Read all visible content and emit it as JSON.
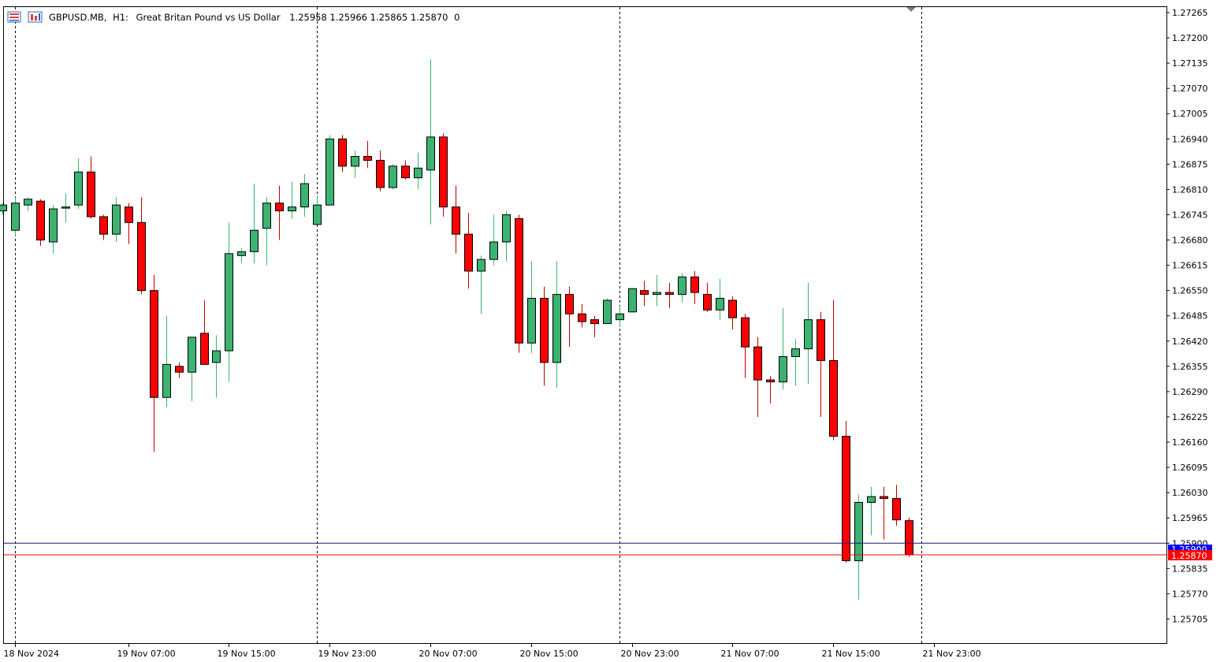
{
  "header": {
    "symbol": "GBPUSD.MB,",
    "timeframe": "H1:",
    "description": "Great Britan Pound vs US Dollar",
    "ohlc": "1.25958 1.25966 1.25865 1.25870",
    "extra": "0"
  },
  "icons": [
    "chart-menu-icon",
    "indicator-list-icon"
  ],
  "colors": {
    "bull": "#3cb371",
    "bear": "#ff0000",
    "wick_bull": "#3cb371",
    "wick_bear": "#c00000",
    "outline": "#000000",
    "bid_line": "#ff0000",
    "ask_line": "#1a1a7a",
    "bid_tag": "#ff0000",
    "ask_tag": "#0000ff"
  },
  "bid_label": "1.25870",
  "ask_label": "1.25900",
  "chart_data": {
    "type": "candlestick",
    "symbol": "GBPUSD.MB",
    "timeframe": "H1",
    "ylim": [
      1.2566,
      1.2729
    ],
    "y_ticks": [
      "1.27265",
      "1.27200",
      "1.27135",
      "1.27070",
      "1.27005",
      "1.26940",
      "1.26875",
      "1.26810",
      "1.26745",
      "1.26680",
      "1.26615",
      "1.26550",
      "1.26485",
      "1.26420",
      "1.26355",
      "1.26290",
      "1.26225",
      "1.26160",
      "1.26095",
      "1.26030",
      "1.25965",
      "1.25900",
      "1.25835",
      "1.25770",
      "1.25705"
    ],
    "x_labels": [
      {
        "label": "18 Nov 2024",
        "index": 1
      },
      {
        "label": "19 Nov 07:00",
        "index": 10
      },
      {
        "label": "19 Nov 15:00",
        "index": 18
      },
      {
        "label": "19 Nov 23:00",
        "index": 26
      },
      {
        "label": "20 Nov 07:00",
        "index": 34
      },
      {
        "label": "20 Nov 15:00",
        "index": 42
      },
      {
        "label": "20 Nov 23:00",
        "index": 50
      },
      {
        "label": "21 Nov 07:00",
        "index": 58
      },
      {
        "label": "21 Nov 15:00",
        "index": 66
      },
      {
        "label": "21 Nov 23:00",
        "index": 74
      }
    ],
    "separators": [
      1,
      25,
      49,
      73
    ],
    "bid": 1.2587,
    "ask": 1.259,
    "candles": [
      [
        1.26755,
        1.26775,
        1.26745,
        1.2677
      ],
      [
        1.26705,
        1.2679,
        1.2669,
        1.26775
      ],
      [
        1.2677,
        1.2679,
        1.26755,
        1.26785
      ],
      [
        1.2678,
        1.26785,
        1.26665,
        1.2668
      ],
      [
        1.26675,
        1.2677,
        1.26645,
        1.2676
      ],
      [
        1.26765,
        1.268,
        1.26725,
        1.26765
      ],
      [
        1.2677,
        1.2689,
        1.2676,
        1.26855
      ],
      [
        1.26855,
        1.26895,
        1.26735,
        1.2674
      ],
      [
        1.2674,
        1.26745,
        1.2668,
        1.26695
      ],
      [
        1.26695,
        1.2679,
        1.26675,
        1.2677
      ],
      [
        1.26765,
        1.26775,
        1.2667,
        1.26725
      ],
      [
        1.26725,
        1.2679,
        1.2654,
        1.2655
      ],
      [
        1.2655,
        1.2659,
        1.26135,
        1.26275
      ],
      [
        1.26275,
        1.26485,
        1.2625,
        1.2636
      ],
      [
        1.26355,
        1.26365,
        1.26325,
        1.2634
      ],
      [
        1.2634,
        1.2643,
        1.26265,
        1.2643
      ],
      [
        1.2644,
        1.26525,
        1.2636,
        1.2636
      ],
      [
        1.26365,
        1.26435,
        1.26275,
        1.26395
      ],
      [
        1.26395,
        1.26725,
        1.26315,
        1.26645
      ],
      [
        1.2664,
        1.2666,
        1.2662,
        1.2665
      ],
      [
        1.2665,
        1.26825,
        1.2662,
        1.26705
      ],
      [
        1.2671,
        1.2679,
        1.26615,
        1.26775
      ],
      [
        1.26775,
        1.2682,
        1.2668,
        1.26755
      ],
      [
        1.26755,
        1.2683,
        1.26735,
        1.26765
      ],
      [
        1.26765,
        1.2685,
        1.2674,
        1.26825
      ],
      [
        1.2672,
        1.26795,
        1.2672,
        1.2677
      ],
      [
        1.2677,
        1.2695,
        1.2677,
        1.2694
      ],
      [
        1.2694,
        1.2695,
        1.26855,
        1.2687
      ],
      [
        1.2687,
        1.2691,
        1.2684,
        1.26895
      ],
      [
        1.26895,
        1.26935,
        1.26865,
        1.26885
      ],
      [
        1.26885,
        1.2691,
        1.26805,
        1.26815
      ],
      [
        1.26815,
        1.26875,
        1.2681,
        1.2687
      ],
      [
        1.2687,
        1.26885,
        1.26835,
        1.2684
      ],
      [
        1.2684,
        1.26905,
        1.2681,
        1.26865
      ],
      [
        1.2686,
        1.27145,
        1.2672,
        1.26945
      ],
      [
        1.26945,
        1.26955,
        1.2674,
        1.26765
      ],
      [
        1.26765,
        1.2682,
        1.26645,
        1.26695
      ],
      [
        1.26695,
        1.2675,
        1.26555,
        1.266
      ],
      [
        1.266,
        1.2664,
        1.2649,
        1.2663
      ],
      [
        1.2663,
        1.26745,
        1.26615,
        1.26675
      ],
      [
        1.26675,
        1.26755,
        1.26625,
        1.26745
      ],
      [
        1.26735,
        1.26745,
        1.2639,
        1.26415
      ],
      [
        1.26415,
        1.26625,
        1.2639,
        1.2653
      ],
      [
        1.2653,
        1.2656,
        1.26305,
        1.26365
      ],
      [
        1.26365,
        1.26625,
        1.263,
        1.2654
      ],
      [
        1.2654,
        1.2656,
        1.26405,
        1.2649
      ],
      [
        1.2649,
        1.26515,
        1.26455,
        1.2647
      ],
      [
        1.26475,
        1.26485,
        1.2643,
        1.26465
      ],
      [
        1.26465,
        1.2653,
        1.26465,
        1.26525
      ],
      [
        1.26475,
        1.2651,
        1.2646,
        1.2649
      ],
      [
        1.26495,
        1.26555,
        1.26495,
        1.26555
      ],
      [
        1.2655,
        1.26575,
        1.2651,
        1.2654
      ],
      [
        1.2654,
        1.2659,
        1.2651,
        1.26545
      ],
      [
        1.26545,
        1.2657,
        1.26505,
        1.2654
      ],
      [
        1.2654,
        1.26595,
        1.2652,
        1.26585
      ],
      [
        1.26585,
        1.266,
        1.26515,
        1.26545
      ],
      [
        1.2654,
        1.2657,
        1.26495,
        1.265
      ],
      [
        1.265,
        1.2658,
        1.26475,
        1.2653
      ],
      [
        1.26525,
        1.26535,
        1.2645,
        1.2648
      ],
      [
        1.2648,
        1.2649,
        1.26325,
        1.26405
      ],
      [
        1.26405,
        1.2643,
        1.26225,
        1.2632
      ],
      [
        1.2632,
        1.2633,
        1.2626,
        1.26315
      ],
      [
        1.26315,
        1.26505,
        1.26295,
        1.2638
      ],
      [
        1.2638,
        1.26425,
        1.26305,
        1.264
      ],
      [
        1.264,
        1.2657,
        1.2631,
        1.26475
      ],
      [
        1.26475,
        1.26495,
        1.26225,
        1.2637
      ],
      [
        1.2637,
        1.26525,
        1.26165,
        1.26175
      ],
      [
        1.26175,
        1.26215,
        1.2585,
        1.25855
      ],
      [
        1.25855,
        1.26025,
        1.25755,
        1.26005
      ],
      [
        1.26005,
        1.26045,
        1.2592,
        1.2602
      ],
      [
        1.2602,
        1.26045,
        1.2591,
        1.26015
      ],
      [
        1.26015,
        1.2605,
        1.25945,
        1.2596
      ],
      [
        1.25958,
        1.25966,
        1.25865,
        1.2587
      ]
    ]
  }
}
